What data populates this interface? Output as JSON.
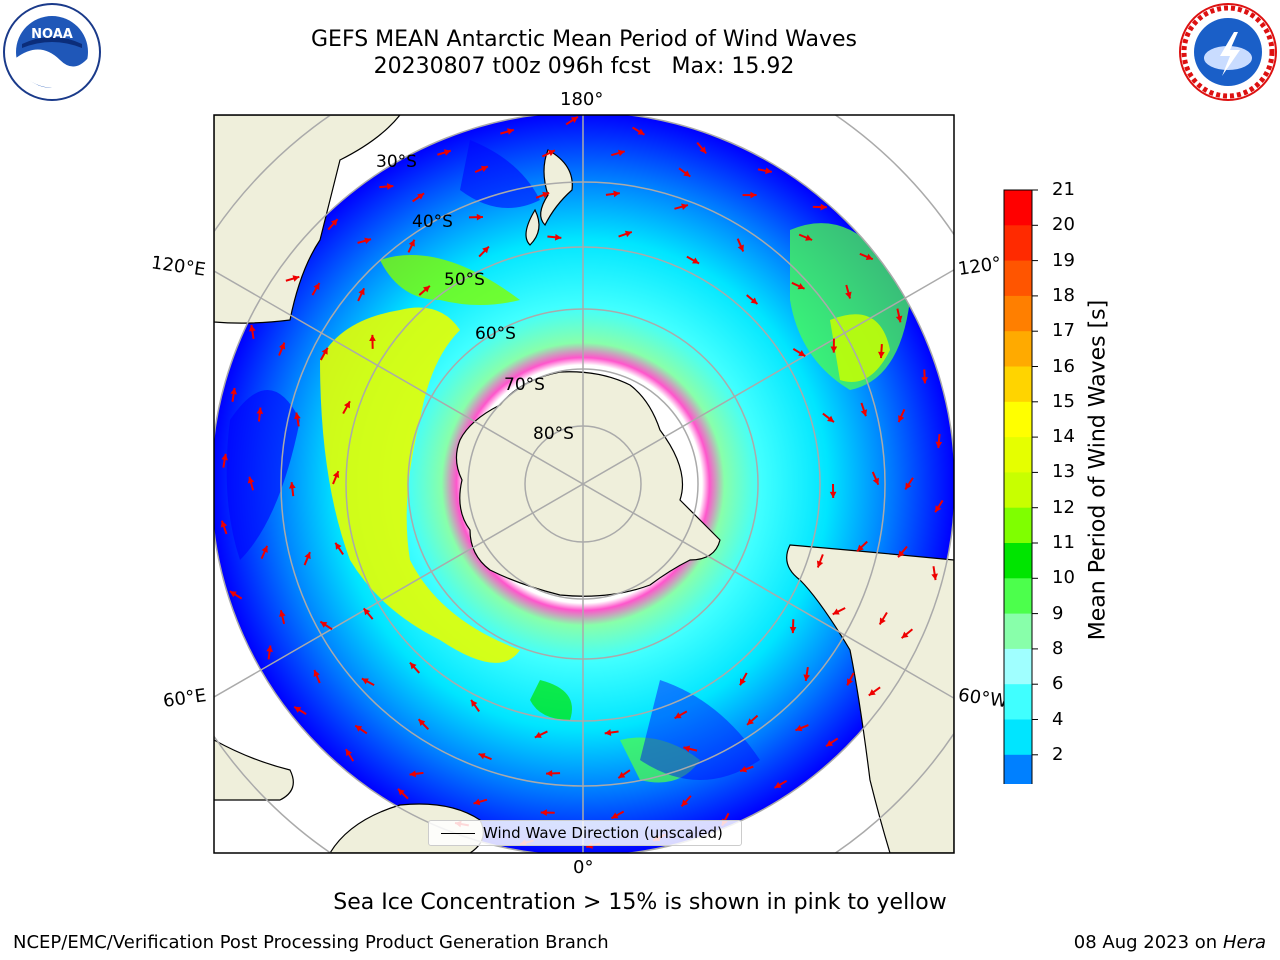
{
  "title_line1": "GEFS MEAN Antarctic Mean Period of Wind Waves",
  "title_line2": "20230807 t00z 096h fcst   Max: 15.92",
  "longitude_labels": {
    "top": "180°",
    "bottom": "0°",
    "left_upper": "120°E",
    "right_upper": "120°",
    "left_lower": "60°E",
    "right_lower": "60°W"
  },
  "latitude_labels": [
    "30°S",
    "40°S",
    "50°S",
    "60°S",
    "70°S",
    "80°S"
  ],
  "legend_label": "Wind Wave Direction (unscaled)",
  "colorbar": {
    "label": "Mean Period of Wind Waves [s]",
    "ticks": [
      "21",
      "20",
      "19",
      "18",
      "17",
      "16",
      "15",
      "14",
      "13",
      "12",
      "11",
      "10",
      "9",
      "8",
      "6",
      "4",
      "2"
    ],
    "colors": [
      "#ff0000",
      "#ff2a00",
      "#ff5500",
      "#ff7f00",
      "#ffaa00",
      "#ffd400",
      "#ffff00",
      "#e5ff00",
      "#c8ff00",
      "#7fff00",
      "#00e500",
      "#4cff4c",
      "#88ffaa",
      "#a0ffff",
      "#40ffff",
      "#00e5ff",
      "#0080ff"
    ],
    "under_color": "#0000ff"
  },
  "sea_ice_note": "Sea Ice Concentration > 15% is shown in pink to yellow",
  "footer_left": "NCEP/EMC/Verification Post Processing Product Generation Branch",
  "footer_right_date": "08 Aug 2023 on",
  "footer_right_machine": "Hera",
  "logos": [
    "noaa-logo",
    "national-weather-service-logo"
  ]
}
